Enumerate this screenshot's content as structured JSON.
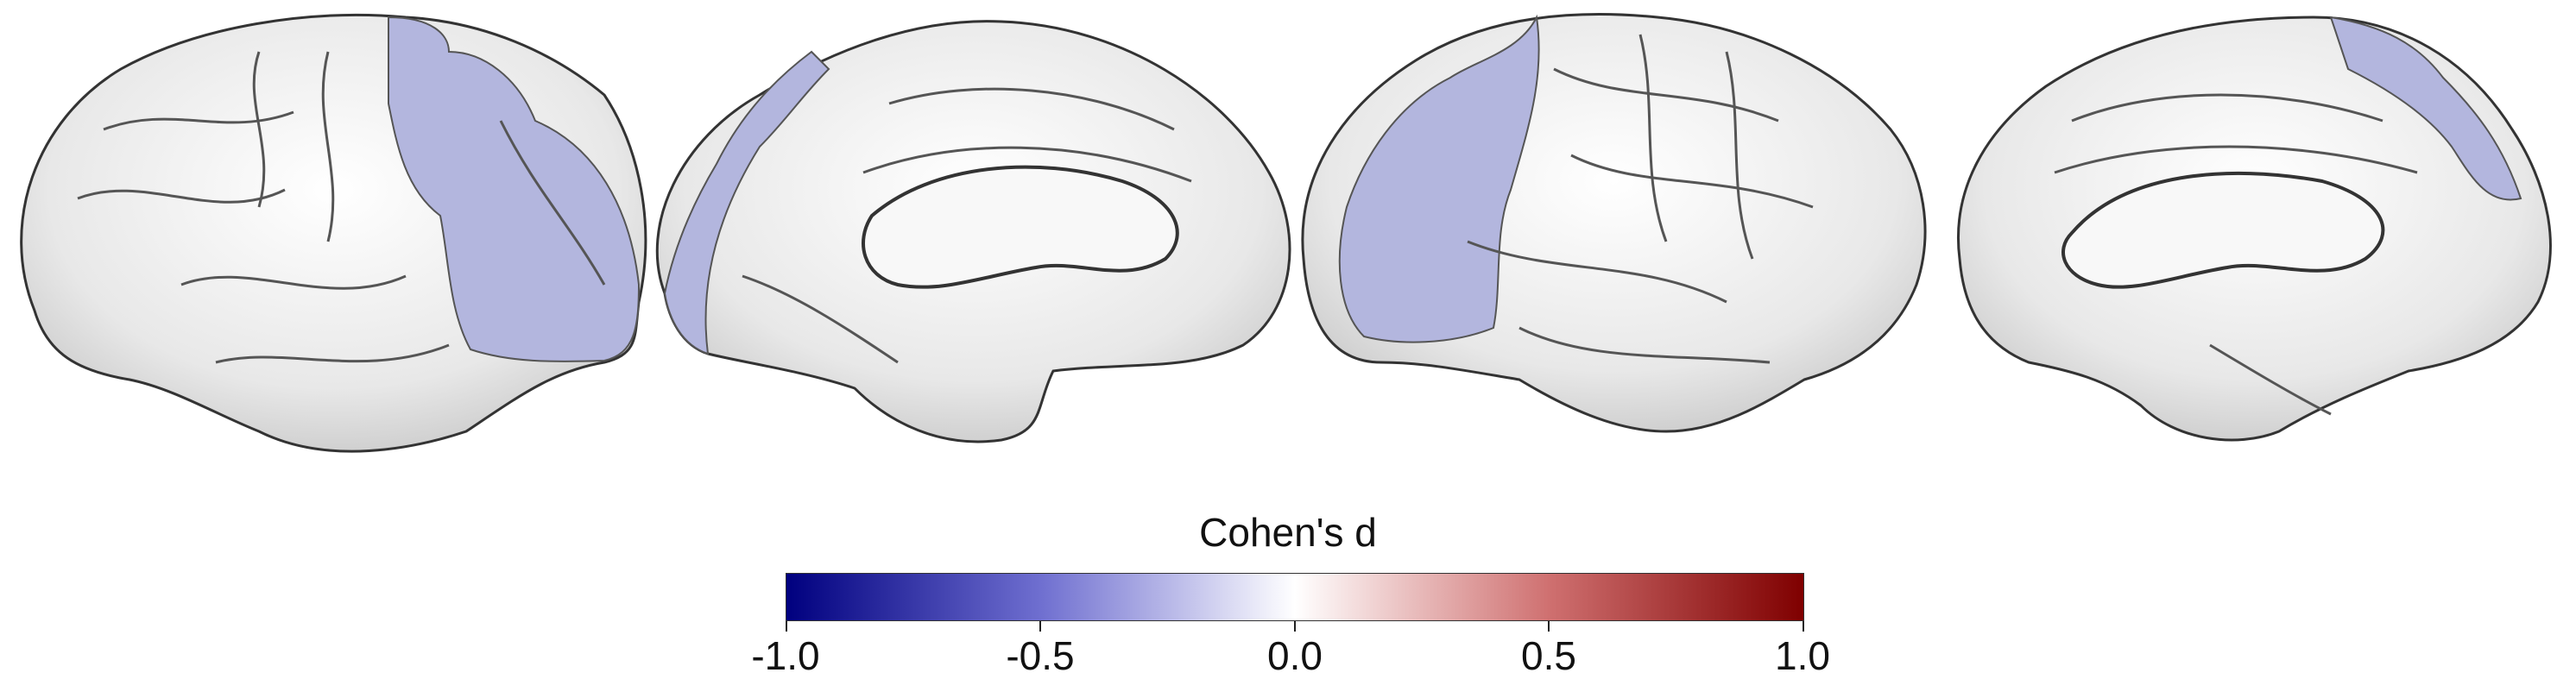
{
  "figure": {
    "views": [
      {
        "name": "left-hemisphere-lateral",
        "region_color": "#b3b6de"
      },
      {
        "name": "left-hemisphere-medial",
        "region_color": "#b3b6de"
      },
      {
        "name": "right-hemisphere-lateral",
        "region_color": "#b3b6de"
      },
      {
        "name": "right-hemisphere-medial",
        "region_color": "#b3b6de"
      }
    ],
    "surface_color": "#efefef",
    "surface_shadow_color": "#3a3a3a"
  },
  "colorbar": {
    "title": "Cohen's d",
    "ticks": [
      "-1.0",
      "-0.5",
      "0.0",
      "0.5",
      "1.0"
    ],
    "range": [
      -1.0,
      1.0
    ],
    "colors": [
      "#00007f",
      "#ffffff",
      "#7f0000"
    ]
  }
}
